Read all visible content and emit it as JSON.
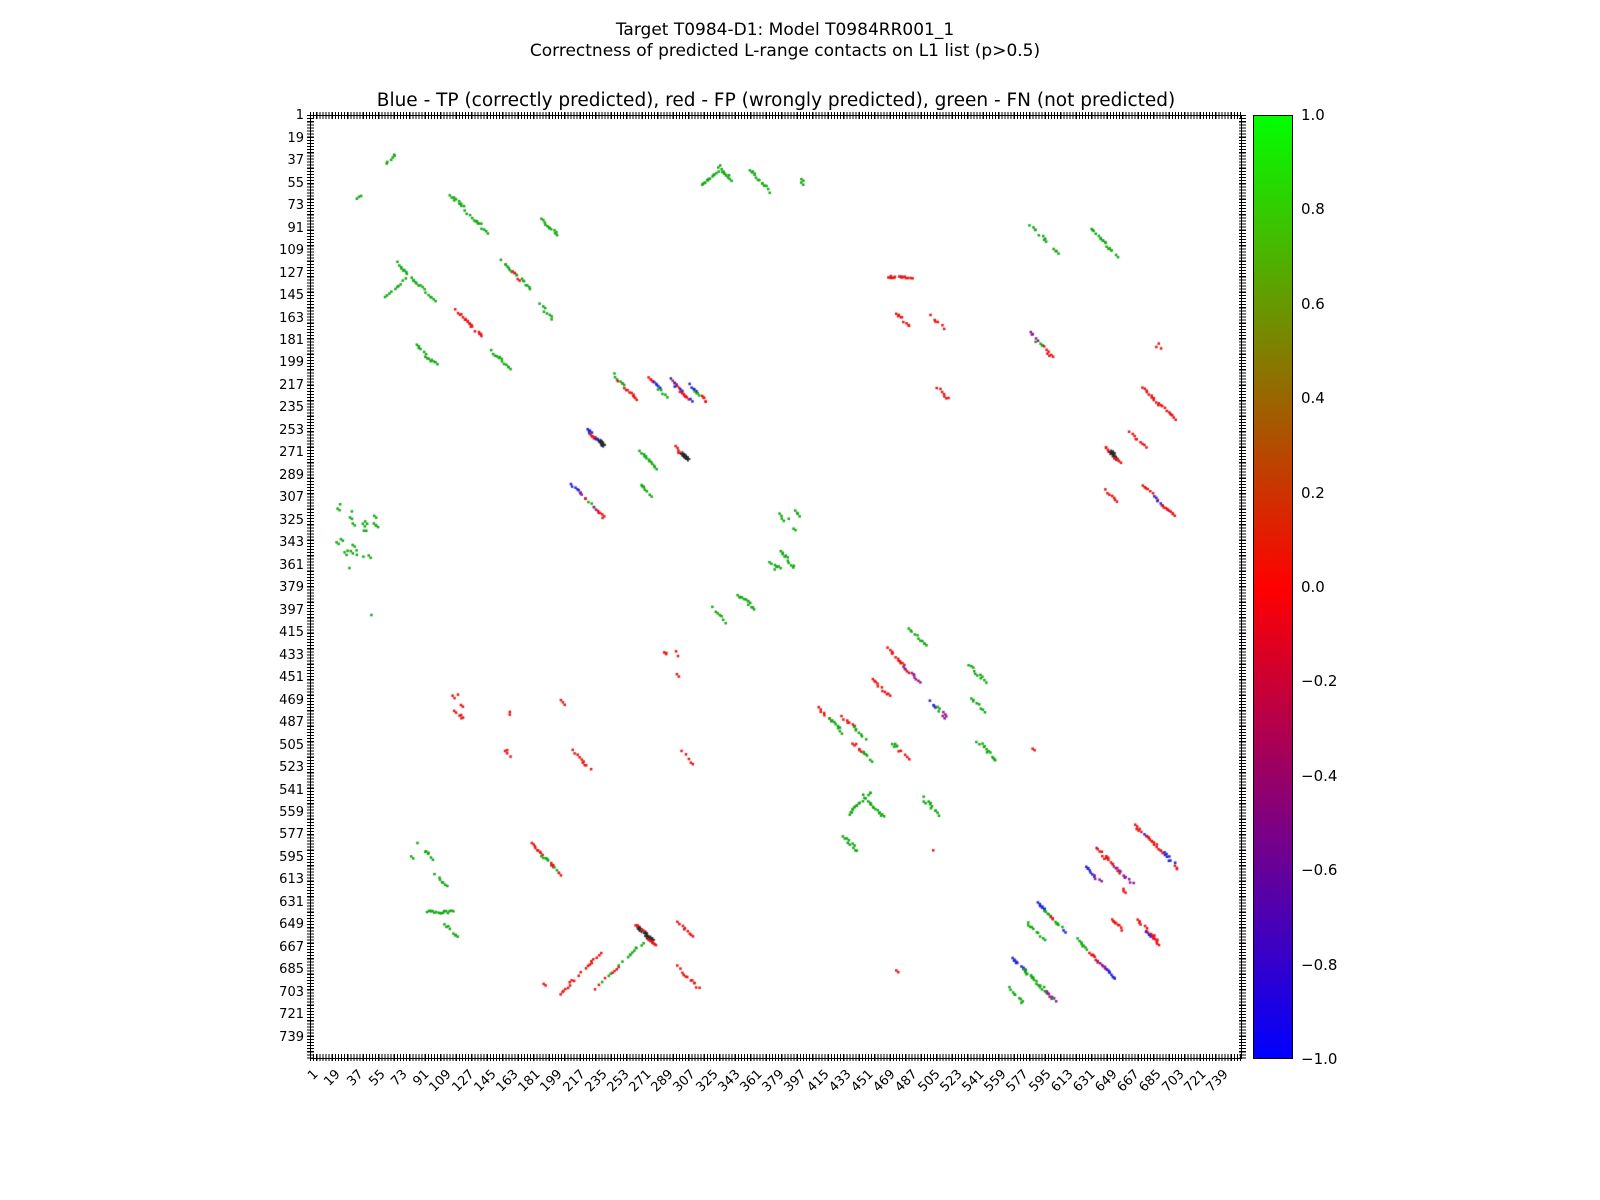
{
  "figure": {
    "suptitle_line1": "Target T0984-D1: Model T0984RR001_1",
    "suptitle_line2": "Correctness of predicted L-range contacts on L1 list (p>0.5)",
    "axes_title": "Blue - TP (correctly predicted), red - FP (wrongly predicted), green - FN (not predicted)"
  },
  "chart_data": {
    "type": "scatter",
    "title": "Blue - TP (correctly predicted), red - FP (wrongly predicted), green - FN (not predicted)",
    "xlabel": "",
    "ylabel": "",
    "xlim": [
      0,
      756
    ],
    "ylim": [
      756,
      0
    ],
    "grid": false,
    "x_ticks": [
      1,
      19,
      37,
      55,
      73,
      91,
      109,
      127,
      145,
      163,
      181,
      199,
      217,
      235,
      253,
      271,
      289,
      307,
      325,
      343,
      361,
      379,
      397,
      415,
      433,
      451,
      469,
      487,
      505,
      523,
      541,
      559,
      577,
      595,
      613,
      631,
      649,
      667,
      685,
      703,
      721,
      739
    ],
    "y_ticks": [
      1,
      19,
      37,
      55,
      73,
      91,
      109,
      127,
      145,
      163,
      181,
      199,
      217,
      235,
      253,
      271,
      289,
      307,
      325,
      343,
      361,
      379,
      397,
      415,
      433,
      451,
      469,
      487,
      505,
      523,
      541,
      559,
      577,
      595,
      613,
      631,
      649,
      667,
      685,
      703,
      721,
      739
    ],
    "legend": {
      "TP": "blue (correctly predicted)",
      "FP": "red (wrongly predicted)",
      "FN": "green (not predicted)"
    },
    "colors": {
      "g": "#12a812",
      "r": "#e81212",
      "b": "#2020d8",
      "m": "#901890",
      "k": "#282828"
    },
    "colorbar": {
      "tick_labels": [
        "1.0",
        "0.8",
        "0.6",
        "0.4",
        "0.2",
        "0.0",
        "−0.2",
        "−0.4",
        "−0.6",
        "−0.8",
        "−1.0"
      ],
      "tick_values": [
        1.0,
        0.8,
        0.6,
        0.4,
        0.2,
        0.0,
        -0.2,
        -0.4,
        -0.6,
        -0.8,
        -1.0
      ],
      "top_color": "#00ff00",
      "mid_color": "#ff0000",
      "bottom_color": "#0000ff"
    },
    "cluster_format": [
      "col_j_start",
      "row_i_start",
      "length_residues",
      "direction(par|anti|h|dot)",
      "color_classes",
      "n_points"
    ],
    "clusters": [
      [
        62,
        39,
        6,
        "anti",
        [
          "g"
        ],
        5
      ],
      [
        42,
        67,
        4,
        "dot",
        [
          "g"
        ],
        3
      ],
      [
        114,
        64,
        30,
        "par",
        [
          "g"
        ],
        16
      ],
      [
        188,
        84,
        11,
        "par",
        [
          "g"
        ],
        7
      ],
      [
        70,
        118,
        30,
        "par",
        [
          "g"
        ],
        14
      ],
      [
        156,
        117,
        22,
        "par",
        [
          "g",
          "r",
          "g"
        ],
        14
      ],
      [
        62,
        146,
        16,
        "anti",
        [
          "g"
        ],
        8
      ],
      [
        118,
        156,
        20,
        "par",
        [
          "r"
        ],
        12
      ],
      [
        186,
        152,
        11,
        "par",
        [
          "g"
        ],
        6
      ],
      [
        86,
        184,
        15,
        "par",
        [
          "g"
        ],
        8
      ],
      [
        147,
        188,
        14,
        "par",
        [
          "g"
        ],
        7
      ],
      [
        318,
        57,
        14,
        "anti",
        [
          "g"
        ],
        10
      ],
      [
        333,
        43,
        8,
        "par",
        [
          "g"
        ],
        6
      ],
      [
        356,
        44,
        18,
        "par",
        [
          "g"
        ],
        10
      ],
      [
        398,
        52,
        3,
        "dot",
        [
          "g"
        ],
        2
      ],
      [
        584,
        88,
        12,
        "par",
        [
          "g"
        ],
        6
      ],
      [
        633,
        91,
        20,
        "par",
        [
          "g"
        ],
        11
      ],
      [
        604,
        108,
        3,
        "dot",
        [
          "g"
        ],
        2
      ],
      [
        468,
        130,
        18,
        "h",
        [
          "r"
        ],
        9
      ],
      [
        476,
        159,
        10,
        "par",
        [
          "r"
        ],
        6
      ],
      [
        504,
        161,
        10,
        "par",
        [
          "r"
        ],
        6
      ],
      [
        584,
        175,
        17,
        "par",
        [
          "m",
          "g",
          "r"
        ],
        10
      ],
      [
        688,
        184,
        4,
        "dot",
        [
          "r"
        ],
        3
      ],
      [
        246,
        208,
        18,
        "par",
        [
          "g",
          "r"
        ],
        10
      ],
      [
        274,
        210,
        14,
        "par",
        [
          "r",
          "b",
          "g"
        ],
        10
      ],
      [
        292,
        212,
        16,
        "par",
        [
          "b",
          "r"
        ],
        12
      ],
      [
        308,
        216,
        14,
        "par",
        [
          "b",
          "g",
          "r"
        ],
        10
      ],
      [
        224,
        251,
        14,
        "par",
        [
          "b",
          "r",
          "b",
          "k"
        ],
        14
      ],
      [
        268,
        270,
        12,
        "par",
        [
          "g"
        ],
        7
      ],
      [
        296,
        266,
        9,
        "par",
        [
          "r",
          "k"
        ],
        6
      ],
      [
        212,
        296,
        26,
        "par",
        [
          "b",
          "m",
          "g",
          "r"
        ],
        16
      ],
      [
        268,
        296,
        7,
        "par",
        [
          "g"
        ],
        4
      ],
      [
        36,
        326,
        22,
        "dot",
        [
          "g"
        ],
        14
      ],
      [
        38,
        354,
        14,
        "dot",
        [
          "g"
        ],
        9
      ],
      [
        51,
        400,
        2,
        "dot",
        [
          "g"
        ],
        1
      ],
      [
        390,
        326,
        12,
        "dot",
        [
          "g"
        ],
        6
      ],
      [
        381,
        350,
        12,
        "par",
        [
          "g"
        ],
        7
      ],
      [
        348,
        384,
        13,
        "par",
        [
          "g"
        ],
        9
      ],
      [
        327,
        395,
        11,
        "par",
        [
          "g"
        ],
        6
      ],
      [
        373,
        366,
        11,
        "dot",
        [
          "g"
        ],
        5
      ],
      [
        486,
        411,
        13,
        "par",
        [
          "g"
        ],
        7
      ],
      [
        468,
        427,
        26,
        "par",
        [
          "r",
          "m"
        ],
        16
      ],
      [
        456,
        451,
        13,
        "par",
        [
          "r"
        ],
        8
      ],
      [
        295,
        439,
        12,
        "dot",
        [
          "r"
        ],
        5
      ],
      [
        413,
        475,
        18,
        "par",
        [
          "r",
          "g"
        ],
        11
      ],
      [
        432,
        482,
        18,
        "par",
        [
          "r",
          "g"
        ],
        11
      ],
      [
        504,
        470,
        12,
        "par",
        [
          "b",
          "g",
          "m"
        ],
        8
      ],
      [
        534,
        440,
        13,
        "par",
        [
          "g"
        ],
        7
      ],
      [
        536,
        467,
        10,
        "par",
        [
          "g"
        ],
        6
      ],
      [
        126,
        474,
        13,
        "dot",
        [
          "r"
        ],
        6
      ],
      [
        164,
        479,
        3,
        "dot",
        [
          "r"
        ],
        2
      ],
      [
        206,
        471,
        3,
        "dot",
        [
          "r"
        ],
        2
      ],
      [
        161,
        511,
        4,
        "dot",
        [
          "r"
        ],
        3
      ],
      [
        212,
        508,
        15,
        "par",
        [
          "r"
        ],
        7
      ],
      [
        301,
        510,
        9,
        "par",
        [
          "r"
        ],
        4
      ],
      [
        441,
        503,
        13,
        "par",
        [
          "r",
          "g"
        ],
        8
      ],
      [
        473,
        503,
        11,
        "par",
        [
          "g",
          "r"
        ],
        7
      ],
      [
        541,
        501,
        14,
        "par",
        [
          "g"
        ],
        9
      ],
      [
        586,
        509,
        2,
        "dot",
        [
          "r"
        ],
        1
      ],
      [
        437,
        560,
        17,
        "anti",
        [
          "g"
        ],
        10
      ],
      [
        448,
        545,
        16,
        "par",
        [
          "g"
        ],
        9
      ],
      [
        497,
        547,
        13,
        "par",
        [
          "g"
        ],
        8
      ],
      [
        433,
        578,
        11,
        "par",
        [
          "g"
        ],
        6
      ],
      [
        506,
        587,
        2,
        "dot",
        [
          "r"
        ],
        1
      ],
      [
        670,
        569,
        34,
        "par",
        [
          "r",
          "r",
          "b"
        ],
        22
      ],
      [
        638,
        587,
        29,
        "par",
        [
          "r",
          "m"
        ],
        17
      ],
      [
        630,
        603,
        11,
        "par",
        [
          "b",
          "m"
        ],
        8
      ],
      [
        659,
        620,
        4,
        "dot",
        [
          "r"
        ],
        2
      ],
      [
        590,
        631,
        21,
        "par",
        [
          "b",
          "g",
          "r",
          "g"
        ],
        14
      ],
      [
        582,
        647,
        12,
        "par",
        [
          "g"
        ],
        8
      ],
      [
        650,
        644,
        8,
        "par",
        [
          "r"
        ],
        5
      ],
      [
        671,
        645,
        17,
        "par",
        [
          "r"
        ],
        10
      ],
      [
        679,
        654,
        9,
        "par",
        [
          "b",
          "r"
        ],
        7
      ],
      [
        622,
        660,
        9,
        "par",
        [
          "g"
        ],
        6
      ],
      [
        570,
        675,
        35,
        "par",
        [
          "b",
          "g",
          "g",
          "m"
        ],
        24
      ],
      [
        633,
        671,
        20,
        "par",
        [
          "r",
          "m",
          "b"
        ],
        13
      ],
      [
        91,
        592,
        13,
        "dot",
        [
          "g"
        ],
        6
      ],
      [
        102,
        608,
        9,
        "par",
        [
          "g"
        ],
        5
      ],
      [
        180,
        584,
        22,
        "par",
        [
          "r",
          "g",
          "r"
        ],
        14
      ],
      [
        94,
        638,
        22,
        "h",
        [
          "g"
        ],
        10
      ],
      [
        110,
        648,
        9,
        "par",
        [
          "g"
        ],
        5
      ],
      [
        264,
        648,
        15,
        "par",
        [
          "r",
          "r",
          "k",
          "r"
        ],
        16
      ],
      [
        299,
        646,
        10,
        "par",
        [
          "r"
        ],
        5
      ],
      [
        188,
        695,
        2,
        "dot",
        [
          "r"
        ],
        1
      ],
      [
        203,
        704,
        32,
        "anti",
        [
          "r"
        ],
        12
      ],
      [
        232,
        700,
        36,
        "anti",
        [
          "r",
          "g"
        ],
        14
      ],
      [
        298,
        682,
        18,
        "par",
        [
          "r"
        ],
        10
      ],
      [
        477,
        686,
        2,
        "dot",
        [
          "r"
        ],
        1
      ],
      [
        567,
        699,
        11,
        "par",
        [
          "g"
        ],
        7
      ],
      [
        645,
        266,
        11,
        "par",
        [
          "r",
          "k",
          "r"
        ],
        9
      ],
      [
        665,
        254,
        11,
        "par",
        [
          "r"
        ],
        6
      ],
      [
        676,
        218,
        24,
        "par",
        [
          "r"
        ],
        14
      ],
      [
        645,
        300,
        8,
        "par",
        [
          "r"
        ],
        4
      ],
      [
        676,
        297,
        23,
        "par",
        [
          "r",
          "b",
          "r"
        ],
        14
      ],
      [
        508,
        218,
        9,
        "par",
        [
          "r"
        ],
        5
      ]
    ]
  }
}
